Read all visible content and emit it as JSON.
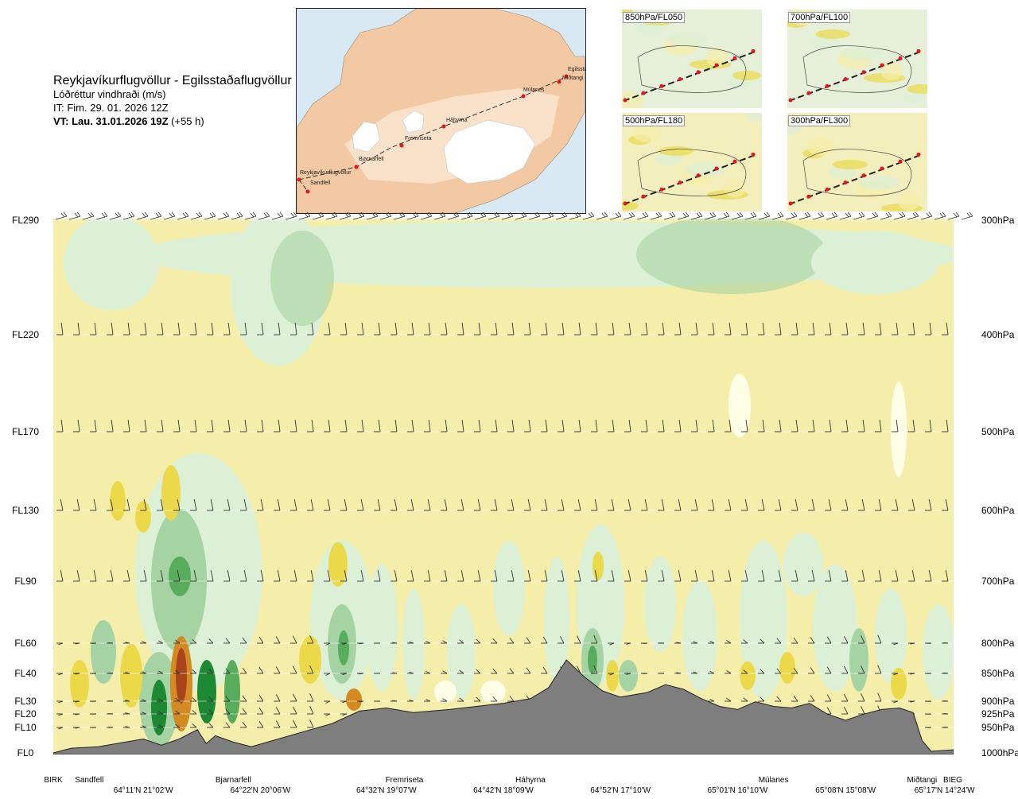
{
  "header": {
    "route": "Reykjavíkurflugvöllur - Egilsstaðaflugvöllur",
    "variable": "Lóðréttur vindhraði (m/s)",
    "issue_time": "IT: Fim. 29. 01. 2026 12Z",
    "valid_time_bold": "VT: Lau. 31.01.2026 19Z",
    "valid_time_offset": "(+55 h)"
  },
  "map": {
    "waypoints": [
      "Reykjavíkurflugvöllur",
      "Sandfell",
      "Bjarnarfell",
      "Fremriseta",
      "Háhyrna",
      "Múlanes",
      "Miðtangi",
      "Egilsstaðir"
    ],
    "route_color": "#333333",
    "waypoint_color": "#e8141c",
    "land_color": "#f2c9a3",
    "ice_color": "#ffffff",
    "sea_color": "#d8e9f4"
  },
  "insets": [
    {
      "label": "850hPa/FL050"
    },
    {
      "label": "700hPa/FL100"
    },
    {
      "label": "500hPa/FL180"
    },
    {
      "label": "300hPa/FL300"
    }
  ],
  "chart_data": {
    "type": "heatmap",
    "title": "",
    "variable": "Lóðréttur vindhraði (m/s)",
    "y_left_levels": [
      "FL290",
      "FL220",
      "FL170",
      "FL130",
      "FL90",
      "FL60",
      "FL40",
      "FL30",
      "FL20",
      "FL10",
      "FL0"
    ],
    "y_right_levels": [
      "300hPa",
      "400hPa",
      "500hPa",
      "600hPa",
      "700hPa",
      "800hPa",
      "850hPa",
      "900hPa",
      "925hPa",
      "950hPa",
      "1000hPa"
    ],
    "waypoints": [
      "BIRK",
      "Sandfell",
      "Bjarnarfell",
      "Fremriseta",
      "Háhyrna",
      "Múlanes",
      "Miðtangi",
      "BIEG"
    ],
    "waypoint_positions": [
      0.0,
      0.04,
      0.2,
      0.39,
      0.53,
      0.8,
      0.965,
      1.0
    ],
    "coordinates": [
      "64°11'N 21°02'W",
      "64°22'N 20°06'W",
      "64°32'N 19°07'W",
      "64°42'N 18°09'W",
      "64°52'N 17°10'W",
      "65°01'N 16°10'W",
      "65°08'N 15°08'W",
      "65°17'N 14°24'W"
    ],
    "coordinate_positions": [
      0.1,
      0.23,
      0.37,
      0.5,
      0.63,
      0.76,
      0.88,
      0.99
    ],
    "terrain_profile_ft": [
      [
        0.0,
        0
      ],
      [
        0.02,
        300
      ],
      [
        0.05,
        400
      ],
      [
        0.08,
        700
      ],
      [
        0.1,
        900
      ],
      [
        0.12,
        500
      ],
      [
        0.14,
        900
      ],
      [
        0.16,
        1500
      ],
      [
        0.17,
        600
      ],
      [
        0.18,
        1100
      ],
      [
        0.2,
        700
      ],
      [
        0.22,
        400
      ],
      [
        0.25,
        900
      ],
      [
        0.28,
        1400
      ],
      [
        0.31,
        1900
      ],
      [
        0.34,
        2700
      ],
      [
        0.37,
        2900
      ],
      [
        0.4,
        2600
      ],
      [
        0.44,
        2800
      ],
      [
        0.47,
        3000
      ],
      [
        0.5,
        3200
      ],
      [
        0.53,
        3500
      ],
      [
        0.55,
        4200
      ],
      [
        0.57,
        6000
      ],
      [
        0.59,
        4900
      ],
      [
        0.61,
        4000
      ],
      [
        0.63,
        3600
      ],
      [
        0.66,
        3900
      ],
      [
        0.68,
        4400
      ],
      [
        0.7,
        4100
      ],
      [
        0.72,
        3500
      ],
      [
        0.74,
        3000
      ],
      [
        0.76,
        2800
      ],
      [
        0.78,
        3300
      ],
      [
        0.8,
        3000
      ],
      [
        0.82,
        2900
      ],
      [
        0.84,
        3200
      ],
      [
        0.86,
        2500
      ],
      [
        0.88,
        2100
      ],
      [
        0.9,
        2500
      ],
      [
        0.92,
        2800
      ],
      [
        0.94,
        2900
      ],
      [
        0.955,
        2600
      ],
      [
        0.965,
        800
      ],
      [
        0.975,
        100
      ],
      [
        1.0,
        200
      ]
    ],
    "legend": "none",
    "grid": true
  },
  "colors": {
    "up_weak": "#f5eeaa",
    "up_mod": "#ebd94a",
    "up_strong": "#d38a22",
    "up_extreme": "#a8441c",
    "down_weak": "#dcf0d6",
    "down_mod": "#a6d3a3",
    "down_strong": "#58ad5c",
    "down_extreme": "#1d8a33",
    "neutral": "#ffffe8",
    "terrain": "#7e7e7e"
  }
}
